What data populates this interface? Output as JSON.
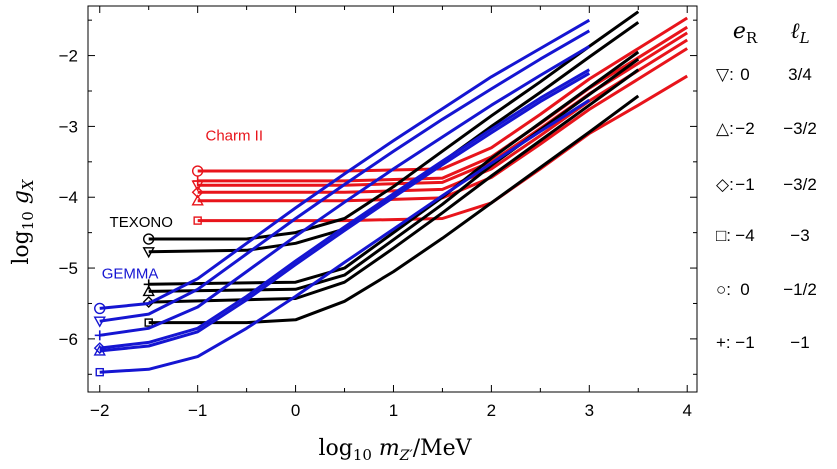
{
  "chart_data": {
    "type": "line",
    "xlabel": "log₁₀ m_Z′/MeV",
    "ylabel": "log₁₀ g_X",
    "xlim": [
      -2.12,
      4.1
    ],
    "ylim": [
      -6.75,
      -1.3
    ],
    "x_ticks": [
      "−2",
      "−1",
      "0",
      "1",
      "2",
      "3",
      "4"
    ],
    "y_ticks": [
      "−2",
      "−3",
      "−4",
      "−5",
      "−6"
    ],
    "x_tick_values": [
      -2,
      -1,
      0,
      1,
      2,
      3,
      4
    ],
    "y_tick_values": [
      -2,
      -3,
      -4,
      -5,
      -6
    ],
    "legend_header": {
      "e_r": "e_R",
      "l_l": "ℓ_L"
    },
    "legend": [
      {
        "marker": "▽",
        "marker_shape": "triangle-down",
        "e_r": "0",
        "l_l": "3/4"
      },
      {
        "marker": "△",
        "marker_shape": "triangle-up",
        "e_r": "−2",
        "l_l": "−3/2"
      },
      {
        "marker": "◇",
        "marker_shape": "diamond",
        "e_r": "−1",
        "l_l": "−3/2"
      },
      {
        "marker": "□",
        "marker_shape": "square",
        "e_r": "−4",
        "l_l": "−3"
      },
      {
        "marker": "○",
        "marker_shape": "circle",
        "e_r": "0",
        "l_l": "−1/2"
      },
      {
        "marker": "+",
        "marker_shape": "plus",
        "e_r": "−1",
        "l_l": "−1"
      }
    ],
    "experiments": [
      {
        "name": "Charm II",
        "color": "#e8141b",
        "label_at": [
          -0.92,
          -3.2
        ],
        "series": [
          {
            "marker": "circle",
            "points": [
              [
                -1,
                -3.63
              ],
              [
                0.5,
                -3.63
              ],
              [
                1.5,
                -3.6
              ],
              [
                2,
                -3.3
              ],
              [
                2.5,
                -2.83
              ],
              [
                3,
                -2.33
              ],
              [
                3.5,
                -1.9
              ],
              [
                4,
                -1.47
              ]
            ]
          },
          {
            "marker": "plus",
            "points": [
              [
                -1,
                -3.77
              ],
              [
                0.5,
                -3.77
              ],
              [
                1.5,
                -3.73
              ],
              [
                2,
                -3.43
              ],
              [
                2.5,
                -2.96
              ],
              [
                3,
                -2.46
              ],
              [
                3.5,
                -2.03
              ],
              [
                4,
                -1.6
              ]
            ]
          },
          {
            "marker": "triangle-down",
            "points": [
              [
                -1,
                -3.83
              ],
              [
                0.5,
                -3.83
              ],
              [
                1.5,
                -3.79
              ],
              [
                2,
                -3.5
              ],
              [
                2.5,
                -3.03
              ],
              [
                3,
                -2.54
              ],
              [
                3.5,
                -2.11
              ],
              [
                4,
                -1.68
              ]
            ]
          },
          {
            "marker": "diamond",
            "points": [
              [
                -1,
                -3.93
              ],
              [
                0.5,
                -3.93
              ],
              [
                1.5,
                -3.89
              ],
              [
                2,
                -3.6
              ],
              [
                2.5,
                -3.13
              ],
              [
                3,
                -2.64
              ],
              [
                3.5,
                -2.21
              ],
              [
                4,
                -1.78
              ]
            ]
          },
          {
            "marker": "triangle-up",
            "points": [
              [
                -1,
                -4.05
              ],
              [
                0.5,
                -4.05
              ],
              [
                1.5,
                -4.01
              ],
              [
                2,
                -3.72
              ],
              [
                2.5,
                -3.25
              ],
              [
                3,
                -2.76
              ],
              [
                3.5,
                -2.33
              ],
              [
                4,
                -1.9
              ]
            ]
          },
          {
            "marker": "square",
            "points": [
              [
                -1,
                -4.33
              ],
              [
                0.5,
                -4.33
              ],
              [
                1.5,
                -4.3
              ],
              [
                2,
                -4.08
              ],
              [
                2.5,
                -3.6
              ],
              [
                3,
                -3.1
              ],
              [
                3.5,
                -2.7
              ],
              [
                4,
                -2.29
              ]
            ]
          }
        ]
      },
      {
        "name": "TEXONO",
        "color": "#000000",
        "label_at": [
          -1.9,
          -4.42
        ],
        "series": [
          {
            "marker": "circle",
            "points": [
              [
                -1.5,
                -4.59
              ],
              [
                -0.5,
                -4.59
              ],
              [
                0,
                -4.5
              ],
              [
                0.5,
                -4.3
              ],
              [
                1,
                -3.85
              ],
              [
                1.5,
                -3.35
              ],
              [
                2,
                -2.85
              ],
              [
                2.5,
                -2.37
              ],
              [
                3,
                -1.87
              ],
              [
                3.5,
                -1.38
              ]
            ]
          },
          {
            "marker": "triangle-down",
            "points": [
              [
                -1.5,
                -4.77
              ],
              [
                -0.5,
                -4.75
              ],
              [
                0,
                -4.65
              ],
              [
                0.5,
                -4.45
              ],
              [
                1,
                -4.0
              ],
              [
                1.5,
                -3.5
              ],
              [
                2,
                -3.0
              ],
              [
                2.5,
                -2.52
              ],
              [
                3,
                -2.02
              ],
              [
                3.5,
                -1.53
              ]
            ]
          },
          {
            "marker": "plus",
            "points": [
              [
                -1.5,
                -5.23
              ],
              [
                0,
                -5.2
              ],
              [
                0.5,
                -5.0
              ],
              [
                1,
                -4.5
              ],
              [
                1.5,
                -4.0
              ],
              [
                2,
                -3.45
              ],
              [
                2.5,
                -2.95
              ],
              [
                3,
                -2.45
              ],
              [
                3.5,
                -1.95
              ]
            ]
          },
          {
            "marker": "triangle-up",
            "points": [
              [
                -1.5,
                -5.33
              ],
              [
                0,
                -5.3
              ],
              [
                0.5,
                -5.1
              ],
              [
                1,
                -4.6
              ],
              [
                1.5,
                -4.1
              ],
              [
                2,
                -3.55
              ],
              [
                2.5,
                -3.05
              ],
              [
                3,
                -2.55
              ],
              [
                3.5,
                -2.05
              ]
            ]
          },
          {
            "marker": "diamond",
            "points": [
              [
                -1.5,
                -5.48
              ],
              [
                0,
                -5.43
              ],
              [
                0.5,
                -5.2
              ],
              [
                1,
                -4.72
              ],
              [
                1.5,
                -4.22
              ],
              [
                2,
                -3.7
              ],
              [
                2.5,
                -3.2
              ],
              [
                3,
                -2.7
              ],
              [
                3.5,
                -2.2
              ]
            ]
          },
          {
            "marker": "square",
            "points": [
              [
                -1.5,
                -5.77
              ],
              [
                -0.5,
                -5.77
              ],
              [
                0,
                -5.73
              ],
              [
                0.5,
                -5.47
              ],
              [
                1,
                -5.05
              ],
              [
                1.5,
                -4.58
              ],
              [
                2,
                -4.08
              ],
              [
                2.5,
                -3.58
              ],
              [
                3,
                -3.08
              ],
              [
                3.5,
                -2.57
              ]
            ]
          }
        ]
      },
      {
        "name": "GEMMA",
        "color": "#1515d2",
        "label_at": [
          -1.98,
          -5.15
        ],
        "series": [
          {
            "marker": "circle",
            "points": [
              [
                -2,
                -5.57
              ],
              [
                -1.5,
                -5.5
              ],
              [
                -1,
                -5.15
              ],
              [
                -0.5,
                -4.65
              ],
              [
                0,
                -4.15
              ],
              [
                0.5,
                -3.67
              ],
              [
                1,
                -3.2
              ],
              [
                1.5,
                -2.75
              ],
              [
                2,
                -2.3
              ],
              [
                2.5,
                -1.9
              ],
              [
                3,
                -1.5
              ]
            ]
          },
          {
            "marker": "triangle-down",
            "points": [
              [
                -2,
                -5.75
              ],
              [
                -1.5,
                -5.65
              ],
              [
                -1,
                -5.3
              ],
              [
                -0.5,
                -4.8
              ],
              [
                0,
                -4.3
              ],
              [
                0.5,
                -3.82
              ],
              [
                1,
                -3.35
              ],
              [
                1.5,
                -2.9
              ],
              [
                2,
                -2.47
              ],
              [
                2.5,
                -2.05
              ],
              [
                3,
                -1.65
              ]
            ]
          },
          {
            "marker": "plus",
            "points": [
              [
                -2,
                -5.95
              ],
              [
                -1.5,
                -5.85
              ],
              [
                -1,
                -5.55
              ],
              [
                -0.5,
                -5.05
              ],
              [
                0,
                -4.55
              ],
              [
                0.5,
                -4.07
              ],
              [
                1,
                -3.6
              ],
              [
                1.5,
                -3.15
              ],
              [
                2,
                -2.7
              ],
              [
                2.5,
                -2.28
              ],
              [
                3,
                -1.87
              ]
            ]
          },
          {
            "marker": "diamond",
            "points": [
              [
                -2,
                -6.13
              ],
              [
                -1.5,
                -6.05
              ],
              [
                -1,
                -5.85
              ],
              [
                -0.5,
                -5.4
              ],
              [
                0,
                -4.9
              ],
              [
                0.5,
                -4.42
              ],
              [
                1,
                -3.95
              ],
              [
                1.5,
                -3.49
              ],
              [
                2,
                -3.04
              ],
              [
                2.5,
                -2.6
              ],
              [
                3,
                -2.2
              ]
            ]
          },
          {
            "marker": "triangle-up",
            "points": [
              [
                -2,
                -6.17
              ],
              [
                -1.5,
                -6.1
              ],
              [
                -1,
                -5.9
              ],
              [
                -0.5,
                -5.45
              ],
              [
                0,
                -4.95
              ],
              [
                0.5,
                -4.47
              ],
              [
                1,
                -4.0
              ],
              [
                1.5,
                -3.54
              ],
              [
                2,
                -3.09
              ],
              [
                2.5,
                -2.65
              ],
              [
                3,
                -2.25
              ]
            ]
          },
          {
            "marker": "square",
            "points": [
              [
                -2,
                -6.47
              ],
              [
                -1.5,
                -6.43
              ],
              [
                -1,
                -6.25
              ],
              [
                -0.5,
                -5.85
              ],
              [
                0,
                -5.4
              ],
              [
                0.5,
                -4.92
              ],
              [
                1,
                -4.45
              ],
              [
                1.5,
                -3.98
              ],
              [
                2,
                -3.52
              ],
              [
                2.5,
                -3.07
              ],
              [
                3,
                -2.63
              ]
            ]
          }
        ]
      }
    ]
  }
}
